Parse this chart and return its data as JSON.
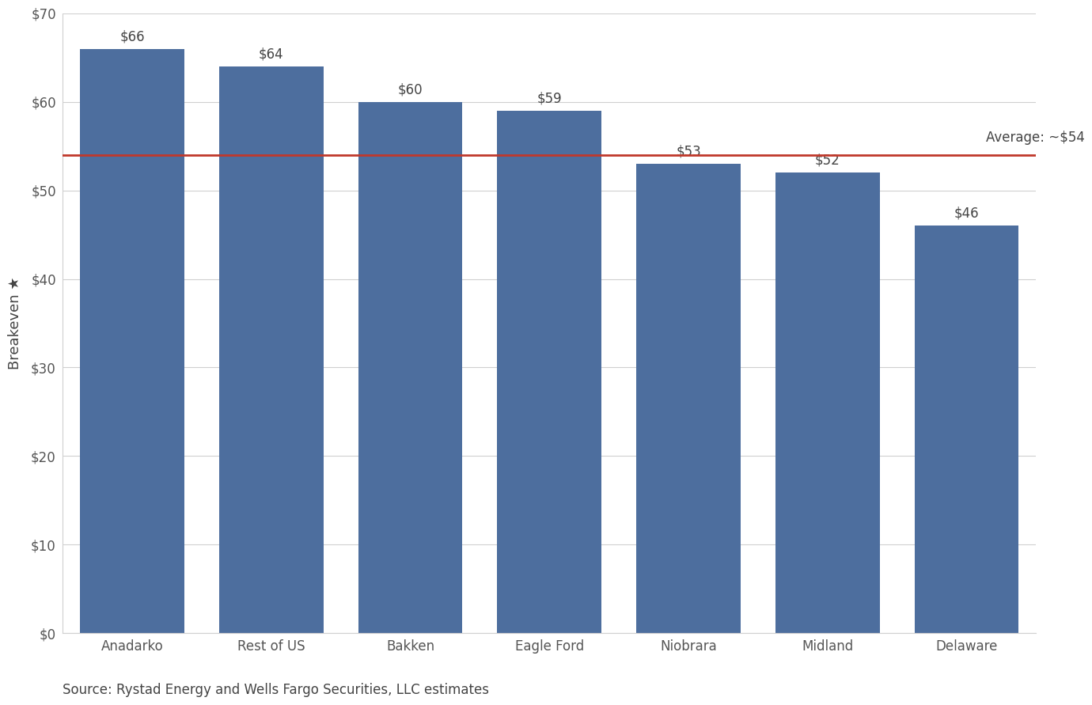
{
  "categories": [
    "Anadarko",
    "Rest of US",
    "Bakken",
    "Eagle Ford",
    "Niobrara",
    "Midland",
    "Delaware"
  ],
  "values": [
    66,
    64,
    60,
    59,
    53,
    52,
    46
  ],
  "bar_color": "#4d6e9e",
  "average_value": 54,
  "average_label": "Average: ~$54",
  "ylabel": "Breakeven ★",
  "ylim": [
    0,
    70
  ],
  "yticks": [
    0,
    10,
    20,
    30,
    40,
    50,
    60,
    70
  ],
  "ytick_labels": [
    "$0",
    "$10",
    "$20",
    "$30",
    "$40",
    "$50",
    "$60",
    "$70"
  ],
  "source_text": "Source: Rystad Energy and Wells Fargo Securities, LLC estimates",
  "avg_line_color": "#c0392b",
  "background_color": "#ffffff",
  "grid_color": "#d0d0d0",
  "label_fontsize": 13,
  "tick_fontsize": 12,
  "bar_label_fontsize": 12,
  "avg_label_fontsize": 12,
  "source_fontsize": 12
}
